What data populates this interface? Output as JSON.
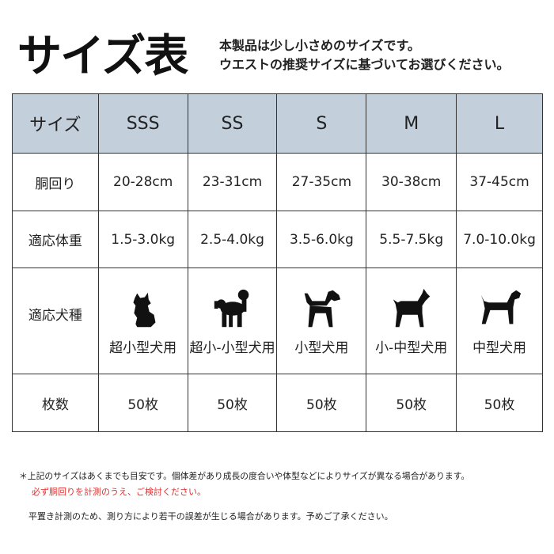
{
  "title": "サイズ表",
  "subtitle": [
    "本製品は少し小さめのサイズです。",
    "ウエストの推奨サイズに基づいてお選びください。"
  ],
  "table": {
    "header_label": "サイズ",
    "sizes": [
      "SSS",
      "SS",
      "S",
      "M",
      "L"
    ],
    "rows": [
      {
        "label": "胴回り",
        "values": [
          "20-28cm",
          "23-31cm",
          "27-35cm",
          "30-38cm",
          "37-45cm"
        ]
      },
      {
        "label": "適応体重",
        "values": [
          "1.5-3.0kg",
          "2.5-4.0kg",
          "3.5-6.0kg",
          "5.5-7.5kg",
          "7.0-10.0kg"
        ]
      }
    ],
    "breed_label": "適応犬種",
    "breeds": [
      {
        "icon": "small-dog-silhouette-icon",
        "label": "超小型犬用"
      },
      {
        "icon": "poodle-silhouette-icon",
        "label": "超小-小型犬用"
      },
      {
        "icon": "beagle-silhouette-icon",
        "label": "小型犬用"
      },
      {
        "icon": "terrier-silhouette-icon",
        "label": "小-中型犬用"
      },
      {
        "icon": "medium-dog-silhouette-icon",
        "label": "中型犬用"
      }
    ],
    "count_label": "枚数",
    "counts": [
      "50枚",
      "50枚",
      "50枚",
      "50枚",
      "50枚"
    ]
  },
  "notes": {
    "line1": "＊上記のサイズはあくまでも目安です。個体差があり成長の度合いや体型などによりサイズが異なる場合があります。",
    "line2": "必ず胴回りを計測のうえ、ご検討ください。",
    "line3": "平置き計測のため、測り方により若干の誤差が生じる場合があります。予めご了承ください。"
  },
  "colors": {
    "header_bg": "#c3cfdb",
    "warning": "#e03030"
  }
}
